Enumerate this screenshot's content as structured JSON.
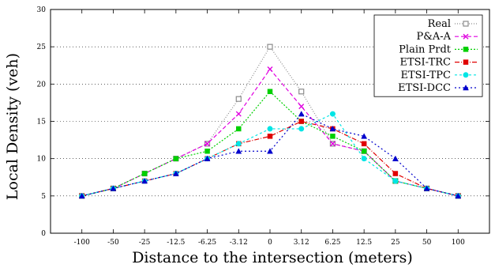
{
  "chart_data": {
    "type": "line",
    "title": "",
    "xlabel": "Distance to the intersection (meters)",
    "ylabel": "Local Density (veh)",
    "categories": [
      "-100",
      "-50",
      "-25",
      "-12.5",
      "-6.25",
      "-3.12",
      "0",
      "3.12",
      "6.25",
      "12.5",
      "25",
      "50",
      "100"
    ],
    "ylim": [
      0,
      30
    ],
    "yticks": [
      0,
      5,
      10,
      15,
      20,
      25,
      30
    ],
    "grid": "horizontal dotted",
    "legend_position": "top-right",
    "series": [
      {
        "name": "Real",
        "color": "#8c8c8c",
        "dash": "1,2",
        "marker": "square-open",
        "values": [
          5,
          6,
          8,
          10,
          12,
          18,
          25,
          19,
          12,
          11,
          7,
          6,
          5
        ]
      },
      {
        "name": "P&A-A",
        "color": "#e000e0",
        "dash": "5,3",
        "marker": "x",
        "values": [
          5,
          6,
          8,
          10,
          12,
          16,
          22,
          17,
          12,
          11,
          7,
          6,
          5
        ]
      },
      {
        "name": "Plain Prdt",
        "color": "#00d000",
        "dash": "2,2",
        "marker": "square",
        "values": [
          5,
          6,
          8,
          10,
          11,
          14,
          19,
          15,
          13,
          11,
          7,
          6,
          5
        ]
      },
      {
        "name": "ETSI-TRC",
        "color": "#e00000",
        "dash": "6,2,1,2",
        "marker": "square",
        "values": [
          5,
          6,
          7,
          8,
          10,
          12,
          13,
          15,
          14,
          12,
          8,
          6,
          5
        ]
      },
      {
        "name": "ETSI-TPC",
        "color": "#00e5e5",
        "dash": "3,3",
        "marker": "circle",
        "values": [
          5,
          6,
          7,
          8,
          10,
          12,
          14,
          14,
          16,
          10,
          7,
          6,
          5
        ]
      },
      {
        "name": "ETSI-DCC",
        "color": "#0000cc",
        "dash": "2,3",
        "marker": "triangle",
        "values": [
          5,
          6,
          7,
          8,
          10,
          11,
          11,
          16,
          14,
          13,
          10,
          6,
          5
        ]
      }
    ]
  }
}
